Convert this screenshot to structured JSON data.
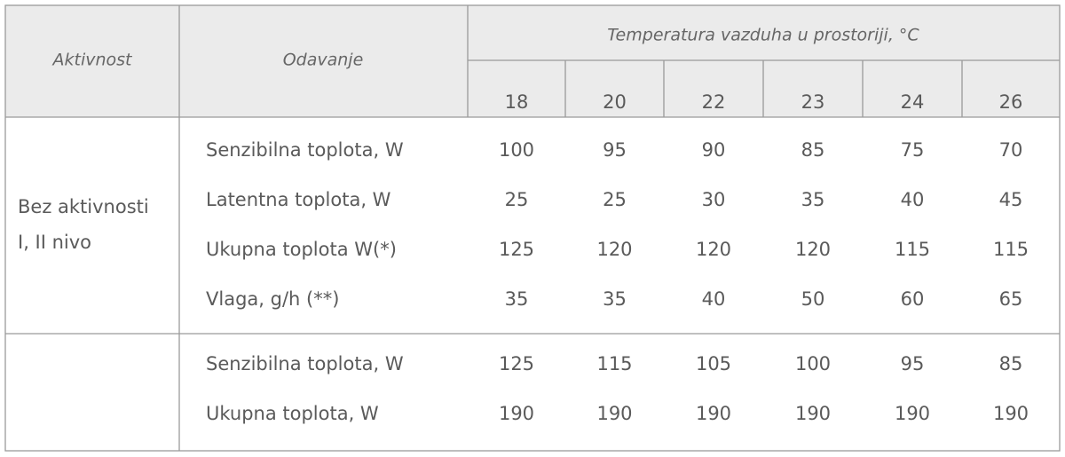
{
  "table": {
    "header": {
      "activity": "Aktivnost",
      "output": "Odavanje",
      "temperature": "Temperatura vazduha u prostoriji, °C",
      "temperatures": [
        18,
        20,
        22,
        23,
        24,
        26
      ]
    },
    "groups": [
      {
        "activity": [
          "Bez aktivnosti",
          "I, II nivo"
        ],
        "rows": [
          {
            "label": "Senzibilna toplota, W",
            "values": [
              100,
              95,
              90,
              85,
              75,
              70
            ]
          },
          {
            "label": "Latentna toplota, W",
            "values": [
              25,
              25,
              30,
              35,
              40,
              45
            ]
          },
          {
            "label": "Ukupna toplota W(*)",
            "values": [
              125,
              120,
              120,
              120,
              115,
              115
            ]
          },
          {
            "label": "Vlaga, g/h (**)",
            "values": [
              35,
              35,
              40,
              50,
              60,
              65
            ]
          }
        ]
      },
      {
        "rows": [
          {
            "label": "Senzibilna toplota, W",
            "values": [
              125,
              115,
              105,
              100,
              95,
              85
            ]
          },
          {
            "label": "Ukupna toplota, W",
            "values": [
              190,
              190,
              190,
              190,
              190,
              190
            ]
          }
        ]
      }
    ]
  }
}
